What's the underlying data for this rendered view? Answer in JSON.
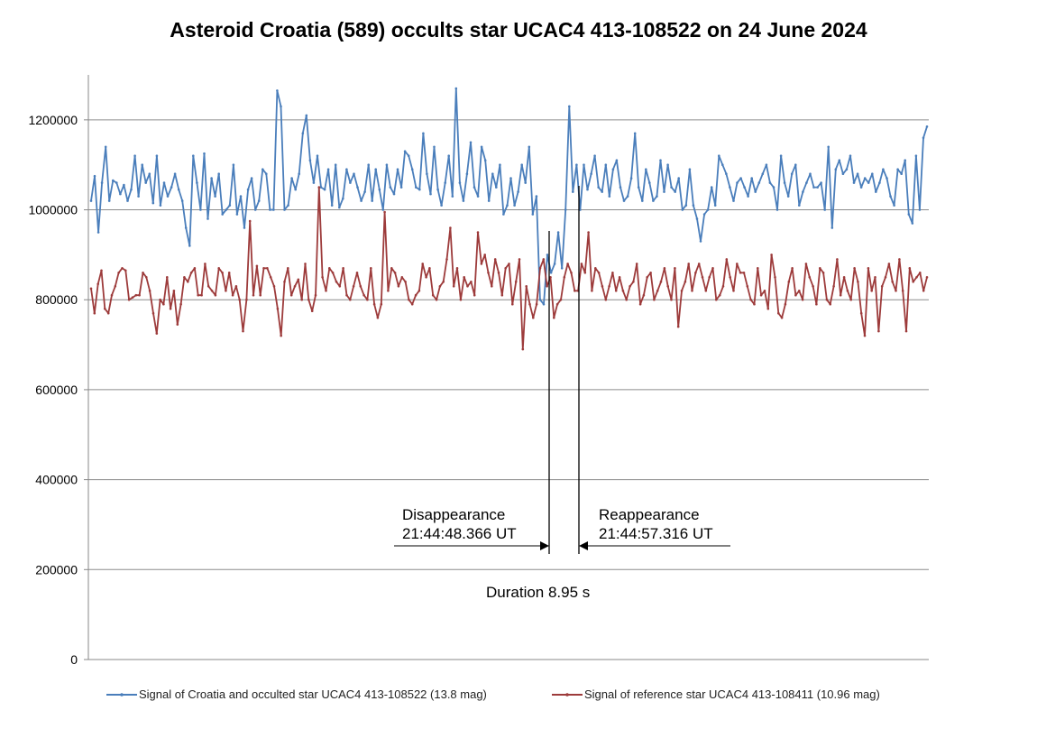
{
  "chart_data": {
    "type": "line",
    "title": "Asteroid Croatia (589) occults star UCAC4 413-108522 on 24 June 2024",
    "xlabel": "",
    "ylabel": "",
    "ylim": [
      0,
      1300000
    ],
    "yticks": [
      0,
      200000,
      400000,
      600000,
      800000,
      1000000,
      1200000
    ],
    "ytick_labels": [
      "0",
      "200000",
      "400000",
      "600000",
      "800000",
      "1000000",
      "1200000"
    ],
    "grid": true,
    "legend_position": "bottom",
    "series": [
      {
        "name": "Signal of Croatia and occulted star UCAC4 413-108522 (13.8 mag)",
        "color": "#4a7ebb",
        "values": [
          1020000,
          1075000,
          950000,
          1060000,
          1140000,
          1020000,
          1065000,
          1060000,
          1035000,
          1055000,
          1020000,
          1045000,
          1120000,
          1030000,
          1100000,
          1060000,
          1080000,
          1015000,
          1120000,
          1010000,
          1060000,
          1030000,
          1050000,
          1080000,
          1045000,
          1020000,
          960000,
          920000,
          1120000,
          1060000,
          1000000,
          1125000,
          980000,
          1070000,
          1030000,
          1080000,
          990000,
          1000000,
          1010000,
          1100000,
          990000,
          1030000,
          960000,
          1045000,
          1070000,
          1000000,
          1020000,
          1090000,
          1080000,
          1000000,
          1000000,
          1265000,
          1230000,
          1000000,
          1010000,
          1070000,
          1045000,
          1080000,
          1170000,
          1210000,
          1110000,
          1060000,
          1120000,
          1050000,
          1045000,
          1090000,
          1010000,
          1100000,
          1005000,
          1025000,
          1090000,
          1060000,
          1080000,
          1050000,
          1020000,
          1040000,
          1100000,
          1020000,
          1090000,
          1045000,
          1000000,
          1100000,
          1050000,
          1035000,
          1090000,
          1050000,
          1130000,
          1120000,
          1090000,
          1050000,
          1045000,
          1170000,
          1080000,
          1035000,
          1140000,
          1045000,
          1010000,
          1060000,
          1120000,
          1030000,
          1270000,
          1060000,
          1020000,
          1080000,
          1150000,
          1050000,
          1030000,
          1140000,
          1110000,
          1020000,
          1080000,
          1050000,
          1100000,
          990000,
          1010000,
          1070000,
          1010000,
          1040000,
          1100000,
          1060000,
          1140000,
          990000,
          1030000,
          800000,
          790000,
          900000,
          860000,
          880000,
          950000,
          870000,
          1000000,
          1230000,
          1040000,
          1100000,
          1000000,
          1100000,
          1045000,
          1080000,
          1120000,
          1050000,
          1040000,
          1100000,
          1030000,
          1090000,
          1110000,
          1050000,
          1020000,
          1030000,
          1070000,
          1170000,
          1050000,
          1020000,
          1090000,
          1060000,
          1020000,
          1030000,
          1110000,
          1040000,
          1100000,
          1050000,
          1040000,
          1070000,
          1000000,
          1010000,
          1090000,
          1010000,
          980000,
          930000,
          990000,
          1000000,
          1050000,
          1010000,
          1120000,
          1100000,
          1080000,
          1050000,
          1020000,
          1060000,
          1070000,
          1050000,
          1030000,
          1070000,
          1040000,
          1060000,
          1080000,
          1100000,
          1060000,
          1050000,
          1000000,
          1120000,
          1060000,
          1030000,
          1080000,
          1100000,
          1010000,
          1040000,
          1060000,
          1080000,
          1050000,
          1050000,
          1060000,
          1000000,
          1140000,
          960000,
          1090000,
          1110000,
          1080000,
          1090000,
          1120000,
          1060000,
          1080000,
          1050000,
          1070000,
          1060000,
          1080000,
          1040000,
          1060000,
          1090000,
          1070000,
          1030000,
          1010000,
          1090000,
          1080000,
          1110000,
          990000,
          970000,
          1120000,
          1000000,
          1160000,
          1185000
        ]
      },
      {
        "name": "Signal of reference star UCAC4 413-108411 (10.96 mag)",
        "color": "#9d3b3b",
        "values": [
          825000,
          770000,
          835000,
          865000,
          780000,
          770000,
          810000,
          830000,
          860000,
          870000,
          865000,
          800000,
          805000,
          810000,
          810000,
          860000,
          850000,
          820000,
          770000,
          725000,
          800000,
          790000,
          850000,
          780000,
          820000,
          745000,
          790000,
          850000,
          840000,
          860000,
          870000,
          810000,
          810000,
          880000,
          830000,
          820000,
          810000,
          870000,
          860000,
          820000,
          860000,
          810000,
          830000,
          800000,
          730000,
          800000,
          975000,
          810000,
          875000,
          810000,
          870000,
          870000,
          850000,
          830000,
          780000,
          720000,
          840000,
          870000,
          810000,
          830000,
          845000,
          800000,
          880000,
          800000,
          775000,
          810000,
          1050000,
          850000,
          820000,
          870000,
          860000,
          840000,
          830000,
          870000,
          810000,
          800000,
          830000,
          860000,
          830000,
          810000,
          800000,
          870000,
          790000,
          760000,
          790000,
          995000,
          820000,
          870000,
          860000,
          830000,
          850000,
          840000,
          800000,
          790000,
          810000,
          820000,
          880000,
          850000,
          870000,
          810000,
          800000,
          830000,
          840000,
          890000,
          960000,
          830000,
          870000,
          800000,
          850000,
          830000,
          840000,
          810000,
          950000,
          880000,
          900000,
          860000,
          830000,
          890000,
          860000,
          810000,
          870000,
          880000,
          790000,
          840000,
          890000,
          690000,
          830000,
          790000,
          760000,
          790000,
          870000,
          890000,
          830000,
          850000,
          760000,
          790000,
          800000,
          850000,
          880000,
          860000,
          820000,
          820000,
          880000,
          860000,
          950000,
          820000,
          870000,
          860000,
          830000,
          800000,
          830000,
          860000,
          820000,
          850000,
          820000,
          800000,
          830000,
          840000,
          880000,
          790000,
          810000,
          850000,
          860000,
          800000,
          820000,
          840000,
          870000,
          830000,
          800000,
          870000,
          740000,
          820000,
          840000,
          880000,
          820000,
          860000,
          880000,
          850000,
          820000,
          850000,
          870000,
          800000,
          810000,
          830000,
          890000,
          850000,
          820000,
          880000,
          860000,
          860000,
          830000,
          800000,
          790000,
          870000,
          810000,
          820000,
          780000,
          900000,
          850000,
          770000,
          760000,
          790000,
          840000,
          870000,
          810000,
          820000,
          800000,
          880000,
          850000,
          830000,
          790000,
          870000,
          860000,
          800000,
          790000,
          830000,
          890000,
          810000,
          850000,
          820000,
          800000,
          870000,
          840000,
          770000,
          720000,
          870000,
          820000,
          850000,
          730000,
          830000,
          850000,
          880000,
          840000,
          820000,
          890000,
          820000,
          730000,
          870000,
          840000,
          850000,
          860000,
          820000,
          850000
        ]
      }
    ],
    "annotations": [
      {
        "label": "Disappearance",
        "time": "21:44:48.366 UT"
      },
      {
        "label": "Reappearance",
        "time": "21:44:57.316 UT"
      },
      {
        "label": "Duration 8.95 s"
      }
    ]
  },
  "legend": {
    "series1": "Signal of Croatia and occulted star UCAC4 413-108522 (13.8 mag)",
    "series2": "Signal of reference star UCAC4 413-108411 (10.96 mag)"
  }
}
